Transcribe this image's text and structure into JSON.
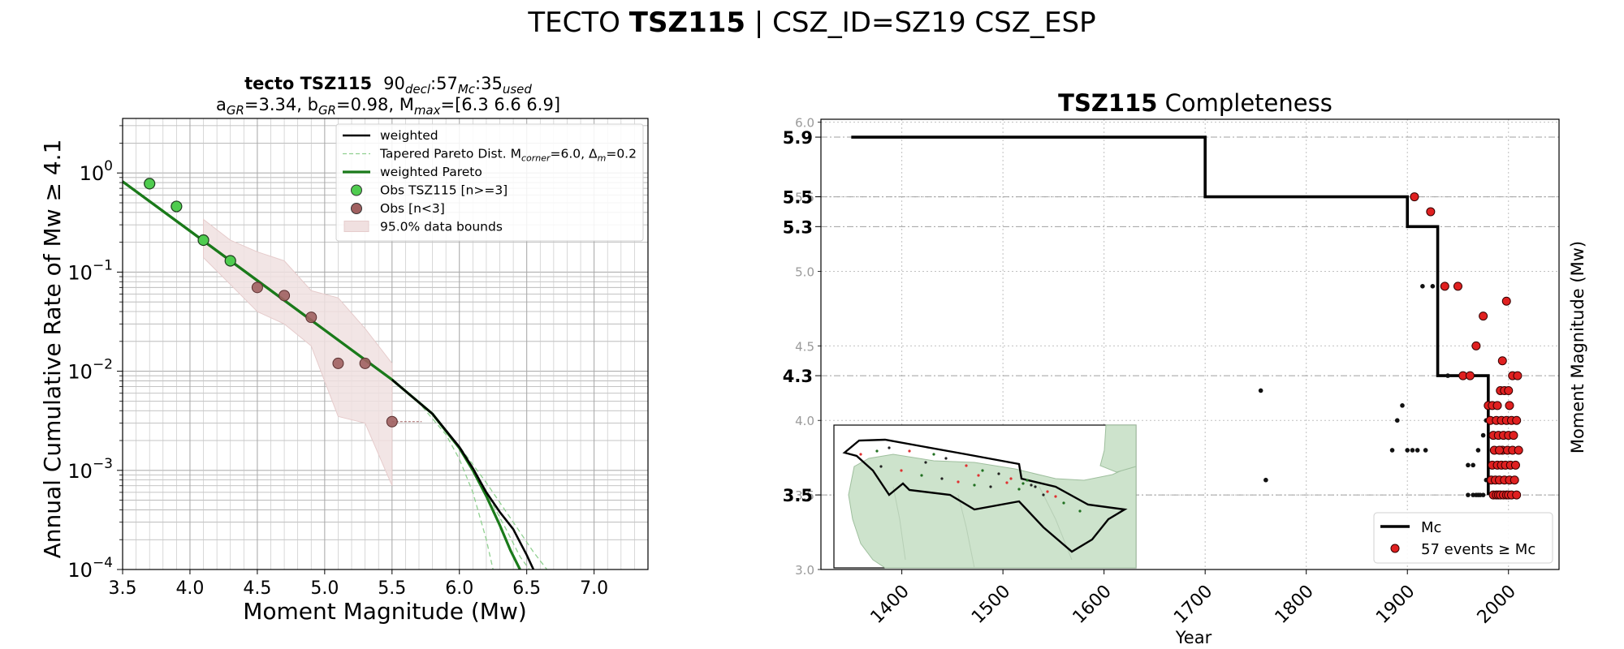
{
  "suptitle": {
    "prefix": "TECTO ",
    "bold": "TSZ115",
    "suffix": " | CSZ_ID=SZ19 CSZ_ESP"
  },
  "chart_data": [
    {
      "type": "line",
      "title_line1": {
        "bold": "tecto TSZ115",
        "rest": "90",
        "sub1": "decl",
        "mid1": ":57",
        "sub2": "Mc",
        "mid2": ":35",
        "sub3": "used"
      },
      "title_line2": "a_GR=3.34,  b_GR=0.98, M_max=[6.3 6.6 6.9]",
      "title_line2_parts": {
        "a": "a",
        "a_sub": "GR",
        "a_val": "=3.34,  b",
        "b_sub": "GR",
        "b_val": "=0.98, M",
        "m_sub": "max",
        "m_val": "=[6.3 6.6 6.9]"
      },
      "xlabel": "Moment Magnitude (Mw)",
      "ylabel": "Annual Cumulative Rate of Mw  ≥  4.1",
      "xlim": [
        3.5,
        7.4
      ],
      "ylim_log10": [
        -4,
        0.55
      ],
      "log_y": true,
      "grid": true,
      "x_ticks": [
        "3.5",
        "4.0",
        "4.5",
        "5.0",
        "5.5",
        "6.0",
        "6.5",
        "7.0"
      ],
      "x_tick_values": [
        3.5,
        4.0,
        4.5,
        5.0,
        5.5,
        6.0,
        6.5,
        7.0
      ],
      "y_ticks": [
        {
          "base": "10",
          "exp": "0",
          "value": 0
        },
        {
          "base": "10",
          "exp": "−1",
          "value": -1
        },
        {
          "base": "10",
          "exp": "−2",
          "value": -2
        },
        {
          "base": "10",
          "exp": "−3",
          "value": -3
        },
        {
          "base": "10",
          "exp": "−4",
          "value": -4
        }
      ],
      "legend": {
        "placement": "upper right",
        "entries": [
          {
            "label": "weighted",
            "style": "line",
            "color": "#000000"
          },
          {
            "label": "Tapered Pareto Dist. M",
            "sub": "corner",
            "label2": "=6.0, Δ",
            "sub2": "m",
            "label3": "=0.2",
            "style": "dashed",
            "color": "#90d090"
          },
          {
            "label": "weighted Pareto",
            "style": "line",
            "color": "#1a7a1a"
          },
          {
            "label": "Obs TSZ115 [n>=3]",
            "style": "marker",
            "color": "#4fcc4f"
          },
          {
            "label": "Obs [n<3]",
            "style": "marker",
            "color": "#a06060"
          },
          {
            "label": "95.0% data bounds",
            "style": "patch",
            "color": "#f0e0e0"
          }
        ]
      },
      "series": [
        {
          "name": "weighted",
          "color": "#000000",
          "x": [
            3.5,
            4.0,
            4.5,
            5.0,
            5.5,
            5.8,
            6.0,
            6.1,
            6.2,
            6.3,
            6.4,
            6.5,
            6.55
          ],
          "y": [
            0.82,
            0.26,
            0.0822,
            0.026,
            0.00822,
            0.00372,
            0.00172,
            0.00105,
            0.0006,
            0.00038,
            0.000255,
            0.00014,
            0.0001
          ]
        },
        {
          "name": "weighted Pareto",
          "color": "#1a7a1a",
          "x": [
            3.5,
            4.0,
            4.5,
            5.0,
            5.5,
            5.8,
            6.0,
            6.1,
            6.2,
            6.3,
            6.38,
            6.45
          ],
          "y": [
            0.82,
            0.26,
            0.0822,
            0.026,
            0.00822,
            0.00372,
            0.00168,
            0.001,
            0.00055,
            0.00028,
            0.000155,
            0.0001
          ]
        },
        {
          "name": "Tapered Pareto Dist. Mcorner=6.0, Δm=0.2",
          "color": "#90d090",
          "dashed": true,
          "curves": [
            {
              "x": [
                5.5,
                5.7,
                5.9,
                6.0,
                6.1,
                6.2,
                6.25
              ],
              "y": [
                0.00822,
                0.0048,
                0.0023,
                0.0013,
                0.0006,
                0.0002,
                0.0001
              ]
            },
            {
              "x": [
                5.5,
                5.8,
                6.0,
                6.2,
                6.35,
                6.45,
                6.52
              ],
              "y": [
                0.00822,
                0.00372,
                0.00165,
                0.0006,
                0.00025,
                0.000135,
                0.0001
              ]
            },
            {
              "x": [
                5.5,
                5.8,
                6.0,
                6.2,
                6.4,
                6.55,
                6.65
              ],
              "y": [
                0.00822,
                0.00372,
                0.00175,
                0.00075,
                0.0003,
                0.00015,
                0.0001
              ]
            }
          ]
        },
        {
          "name": "Obs TSZ115 [n>=3]",
          "color": "#4fcc4f",
          "x": [
            3.7,
            3.9,
            4.1,
            4.3
          ],
          "y": [
            0.78,
            0.46,
            0.21,
            0.13
          ]
        },
        {
          "name": "Obs [n<3]",
          "color": "#a06060",
          "x": [
            4.5,
            4.7,
            4.9,
            5.1,
            5.3,
            5.5
          ],
          "y": [
            0.07,
            0.058,
            0.035,
            0.012,
            0.012,
            0.0031
          ]
        },
        {
          "name": "95.0% data bounds",
          "color": "#f0e0e0",
          "upper": {
            "x": [
              4.1,
              4.3,
              4.5,
              4.7,
              4.9,
              5.1,
              5.3,
              5.5
            ],
            "y": [
              0.34,
              0.21,
              0.16,
              0.13,
              0.065,
              0.055,
              0.027,
              0.012
            ]
          },
          "lower": {
            "x": [
              4.1,
              4.3,
              4.5,
              4.7,
              4.9,
              5.1,
              5.3,
              5.5
            ],
            "y": [
              0.14,
              0.075,
              0.04,
              0.03,
              0.018,
              0.0035,
              0.003,
              0.0007
            ]
          }
        }
      ]
    },
    {
      "type": "line",
      "title_bold": "TSZ115",
      "title_rest": " Completeness",
      "xlabel": "Year",
      "ylabel": "Moment Magnitude (Mw)",
      "xlim": [
        1320,
        2050
      ],
      "ylim": [
        3.0,
        6.02
      ],
      "grid": true,
      "x_ticks": [
        "1400",
        "1500",
        "1600",
        "1700",
        "1800",
        "1900",
        "2000"
      ],
      "x_tick_values": [
        1400,
        1500,
        1600,
        1700,
        1800,
        1900,
        2000
      ],
      "y_ticks_minor": [
        "3.0",
        "3.5",
        "4.0",
        "4.5",
        "5.0",
        "5.5",
        "6.0"
      ],
      "y_ticks_minor_values": [
        3.0,
        3.5,
        4.0,
        4.5,
        5.0,
        5.5,
        6.0
      ],
      "y_ticks_major": [
        "5.9",
        "5.5",
        "5.3",
        "4.3",
        "3.5"
      ],
      "y_ticks_major_values": [
        5.9,
        5.5,
        5.3,
        4.3,
        3.5
      ],
      "legend": {
        "placement": "lower right",
        "entries": [
          {
            "label": "Mc",
            "style": "line",
            "color": "#000000"
          },
          {
            "label": "57 events  ≥  Mc",
            "style": "marker",
            "color": "#e02020"
          }
        ]
      },
      "series": [
        {
          "name": "Mc",
          "color": "#000000",
          "x": [
            1350,
            1700,
            1700,
            1900,
            1900,
            1930,
            1930,
            1980,
            1980
          ],
          "y": [
            5.9,
            5.9,
            5.5,
            5.5,
            5.3,
            5.3,
            4.3,
            4.3,
            3.5
          ]
        },
        {
          "name": "57 events  ≥  Mc",
          "color": "#e02020",
          "x": [
            1907,
            1923,
            1937,
            1950,
            1955,
            1962,
            1968,
            1975,
            1985,
            1988,
            1990,
            1992,
            1995,
            1998,
            2000,
            2003,
            2008,
            1983,
            1987,
            1991,
            1996,
            2001,
            2006,
            1984,
            1989,
            1993,
            1997,
            2002,
            2007,
            1986,
            1994,
            1999,
            2004,
            2010,
            1985,
            1990,
            1995,
            2000,
            2005,
            1982,
            1988,
            1993,
            1998,
            2003,
            2008,
            1980,
            1984,
            1989,
            1992,
            1996,
            2000,
            2004,
            2009,
            1998,
            1994,
            2001,
            1991
          ],
          "y": [
            5.5,
            5.4,
            4.9,
            4.9,
            4.3,
            4.3,
            4.5,
            4.7,
            3.5,
            3.5,
            3.5,
            3.5,
            3.5,
            3.5,
            3.5,
            3.5,
            3.5,
            3.6,
            3.6,
            3.6,
            3.6,
            3.6,
            3.6,
            3.7,
            3.7,
            3.7,
            3.7,
            3.7,
            3.7,
            3.8,
            3.8,
            3.8,
            3.8,
            3.8,
            3.9,
            3.9,
            3.9,
            3.9,
            3.9,
            4.0,
            4.0,
            4.0,
            4.0,
            4.0,
            4.0,
            4.1,
            4.1,
            4.1,
            4.2,
            4.2,
            4.2,
            4.3,
            4.3,
            4.8,
            4.4,
            4.1,
            3.8
          ]
        },
        {
          "name": "events below Mc",
          "color": "#000000",
          "x": [
            1755,
            1760,
            1885,
            1890,
            1895,
            1900,
            1905,
            1910,
            1915,
            1918,
            1925,
            1935,
            1940,
            1950,
            1960,
            1965,
            1968,
            1970,
            1972,
            1975,
            1978,
            1980,
            1982,
            1985,
            1960,
            1965,
            1970,
            1975,
            1978
          ],
          "y": [
            4.2,
            3.6,
            3.8,
            4.0,
            4.1,
            3.8,
            3.8,
            3.8,
            4.9,
            3.8,
            4.9,
            4.9,
            4.3,
            4.9,
            3.5,
            3.5,
            3.5,
            3.5,
            3.5,
            3.5,
            3.6,
            3.6,
            3.6,
            3.6,
            3.7,
            3.7,
            3.8,
            3.9,
            4.0
          ]
        }
      ]
    }
  ]
}
